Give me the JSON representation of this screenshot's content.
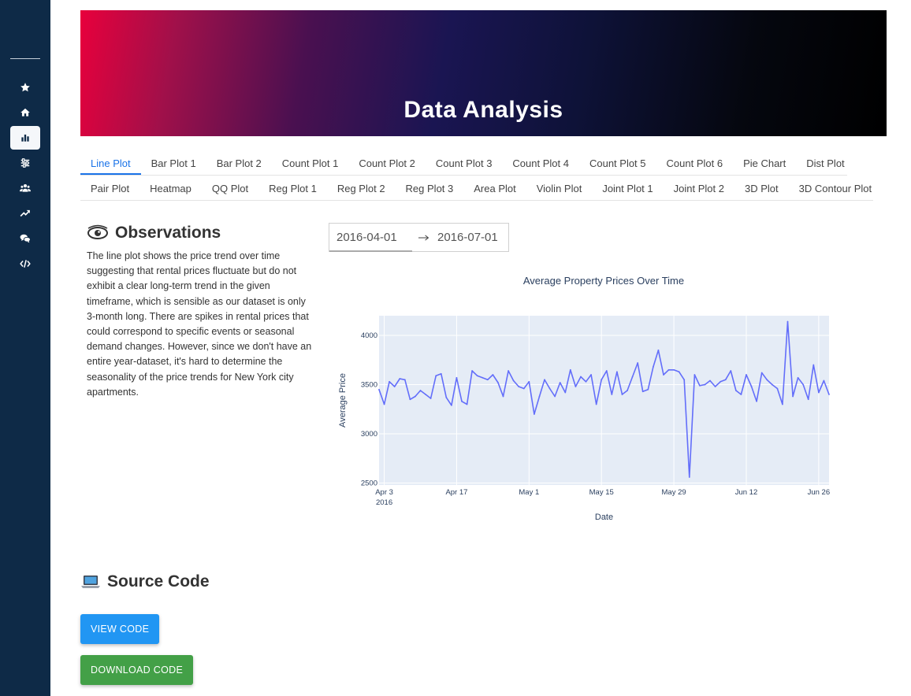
{
  "sidebar": {
    "items": [
      {
        "icon": "star-icon"
      },
      {
        "icon": "home-icon"
      },
      {
        "icon": "bar-chart-icon",
        "active": true
      },
      {
        "icon": "sliders-icon"
      },
      {
        "icon": "users-icon"
      },
      {
        "icon": "trend-up-icon"
      },
      {
        "icon": "comments-icon"
      },
      {
        "icon": "code-icon"
      }
    ]
  },
  "hero": {
    "title": "Data Analysis"
  },
  "tabs": {
    "row1": [
      "Line Plot",
      "Bar Plot 1",
      "Bar Plot 2",
      "Count Plot 1",
      "Count Plot 2",
      "Count Plot 3",
      "Count Plot 4",
      "Count Plot 5",
      "Count Plot 6",
      "Pie Chart",
      "Dist Plot"
    ],
    "row2": [
      "Pair Plot",
      "Heatmap",
      "QQ Plot",
      "Reg Plot 1",
      "Reg Plot 2",
      "Reg Plot 3",
      "Area Plot",
      "Violin Plot",
      "Joint Plot 1",
      "Joint Plot 2",
      "3D Plot",
      "3D Contour Plot"
    ],
    "active": "Line Plot"
  },
  "observations": {
    "title": "Observations",
    "text": "The line plot shows the price trend over time suggesting that rental prices fluctuate but do not exhibit a clear long-term trend in the given timeframe, which is sensible as our dataset is only 3-month long. There are spikes in rental prices that could correspond to specific events or seasonal demand changes. However, since we don't have an entire year-dataset, it's hard to determine the seasonality of the price trends for New York city apartments."
  },
  "date_range": {
    "start": "2016-04-01",
    "end": "2016-07-01"
  },
  "chart_data": {
    "type": "line",
    "title": "Average Property Prices Over Time",
    "xlabel": "Date",
    "ylabel": "Average Price",
    "x_range": [
      "2016-04-02",
      "2016-06-28"
    ],
    "ylim": [
      2480,
      4200
    ],
    "y_ticks": [
      2500,
      3000,
      3500,
      4000
    ],
    "x_ticks": [
      {
        "date": "2016-04-03",
        "label": "Apr 3",
        "sub": "2016"
      },
      {
        "date": "2016-04-17",
        "label": "Apr 17"
      },
      {
        "date": "2016-05-01",
        "label": "May 1"
      },
      {
        "date": "2016-05-15",
        "label": "May 15"
      },
      {
        "date": "2016-05-29",
        "label": "May 29"
      },
      {
        "date": "2016-06-12",
        "label": "Jun 12"
      },
      {
        "date": "2016-06-26",
        "label": "Jun 26"
      }
    ],
    "grid": true,
    "line_color": "#636efa",
    "plot_bg": "#e5ecf6",
    "series": [
      {
        "x": [
          "2016-04-02",
          "2016-04-03",
          "2016-04-04",
          "2016-04-05",
          "2016-04-06",
          "2016-04-07",
          "2016-04-08",
          "2016-04-09",
          "2016-04-10",
          "2016-04-11",
          "2016-04-12",
          "2016-04-13",
          "2016-04-14",
          "2016-04-15",
          "2016-04-16",
          "2016-04-17",
          "2016-04-18",
          "2016-04-19",
          "2016-04-20",
          "2016-04-21",
          "2016-04-22",
          "2016-04-23",
          "2016-04-24",
          "2016-04-25",
          "2016-04-26",
          "2016-04-27",
          "2016-04-28",
          "2016-04-29",
          "2016-04-30",
          "2016-05-01",
          "2016-05-02",
          "2016-05-03",
          "2016-05-04",
          "2016-05-05",
          "2016-05-06",
          "2016-05-07",
          "2016-05-08",
          "2016-05-09",
          "2016-05-10",
          "2016-05-11",
          "2016-05-12",
          "2016-05-13",
          "2016-05-14",
          "2016-05-15",
          "2016-05-16",
          "2016-05-17",
          "2016-05-18",
          "2016-05-19",
          "2016-05-20",
          "2016-05-21",
          "2016-05-22",
          "2016-05-23",
          "2016-05-24",
          "2016-05-25",
          "2016-05-26",
          "2016-05-27",
          "2016-05-28",
          "2016-05-29",
          "2016-05-30",
          "2016-05-31",
          "2016-06-01",
          "2016-06-02",
          "2016-06-03",
          "2016-06-04",
          "2016-06-05",
          "2016-06-06",
          "2016-06-07",
          "2016-06-08",
          "2016-06-09",
          "2016-06-10",
          "2016-06-11",
          "2016-06-12",
          "2016-06-13",
          "2016-06-14",
          "2016-06-15",
          "2016-06-16",
          "2016-06-17",
          "2016-06-18",
          "2016-06-19",
          "2016-06-20",
          "2016-06-21",
          "2016-06-22",
          "2016-06-23",
          "2016-06-24",
          "2016-06-25",
          "2016-06-26",
          "2016-06-27",
          "2016-06-28"
        ],
        "y": [
          3450,
          3300,
          3530,
          3480,
          3560,
          3550,
          3350,
          3380,
          3440,
          3400,
          3360,
          3590,
          3610,
          3370,
          3290,
          3570,
          3330,
          3300,
          3640,
          3590,
          3570,
          3550,
          3600,
          3520,
          3380,
          3640,
          3540,
          3480,
          3460,
          3530,
          3200,
          3380,
          3550,
          3460,
          3380,
          3520,
          3420,
          3650,
          3480,
          3580,
          3530,
          3600,
          3300,
          3550,
          3640,
          3400,
          3630,
          3400,
          3440,
          3580,
          3720,
          3430,
          3450,
          3680,
          3850,
          3600,
          3650,
          3650,
          3630,
          3550,
          2560,
          3600,
          3490,
          3500,
          3540,
          3480,
          3530,
          3550,
          3640,
          3440,
          3400,
          3600,
          3480,
          3330,
          3620,
          3550,
          3500,
          3460,
          3300,
          4140,
          3380,
          3570,
          3500,
          3350,
          3700,
          3420,
          3540,
          3400
        ]
      }
    ]
  },
  "source_code": {
    "title": "Source Code",
    "view_label": "VIEW CODE",
    "download_label": "DOWNLOAD CODE"
  }
}
